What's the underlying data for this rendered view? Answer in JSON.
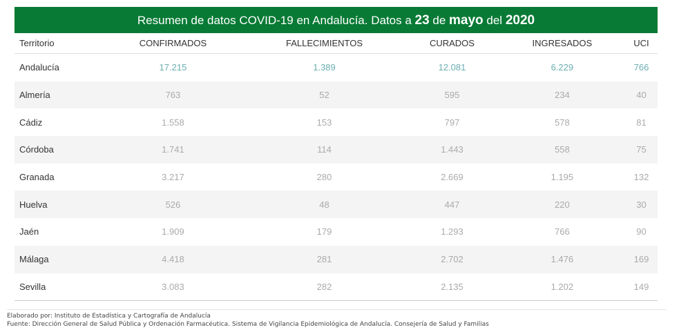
{
  "title": {
    "prefix": "Resumen de datos COVID-19 en Andalucía. Datos a ",
    "day": "23",
    "de": " de ",
    "month": "mayo",
    "del": " del ",
    "year": "2020"
  },
  "columns": [
    "Territorio",
    "CONFIRMADOS",
    "FALLECIMIENTOS",
    "CURADOS",
    "INGRESADOS",
    "UCI"
  ],
  "rows": [
    [
      "Andalucía",
      "17.215",
      "1.389",
      "12.081",
      "6.229",
      "766"
    ],
    [
      "Almería",
      "763",
      "52",
      "595",
      "234",
      "40"
    ],
    [
      "Cádiz",
      "1.558",
      "153",
      "797",
      "578",
      "81"
    ],
    [
      "Córdoba",
      "1.741",
      "114",
      "1.443",
      "558",
      "75"
    ],
    [
      "Granada",
      "3.217",
      "280",
      "2.669",
      "1.195",
      "132"
    ],
    [
      "Huelva",
      "526",
      "48",
      "447",
      "220",
      "30"
    ],
    [
      "Jaén",
      "1.909",
      "179",
      "1.293",
      "766",
      "90"
    ],
    [
      "Málaga",
      "4.418",
      "281",
      "2.702",
      "1.476",
      "169"
    ],
    [
      "Sevilla",
      "3.083",
      "282",
      "2.135",
      "1.202",
      "149"
    ]
  ],
  "footer": {
    "elaborado": "Elaborado por: Instituto de Estadística y Cartografía de Andalucía",
    "fuente": "Fuente: Dirección General de Salud Pública y Ordenación Farmacéutica. Sistema de Vigilancia Epidemiológica de Andalucía. Consejería de Salud y Familias"
  },
  "colors": {
    "banner": "#087a35",
    "total": "#6aaeb0",
    "value": "#aaaaaa"
  }
}
